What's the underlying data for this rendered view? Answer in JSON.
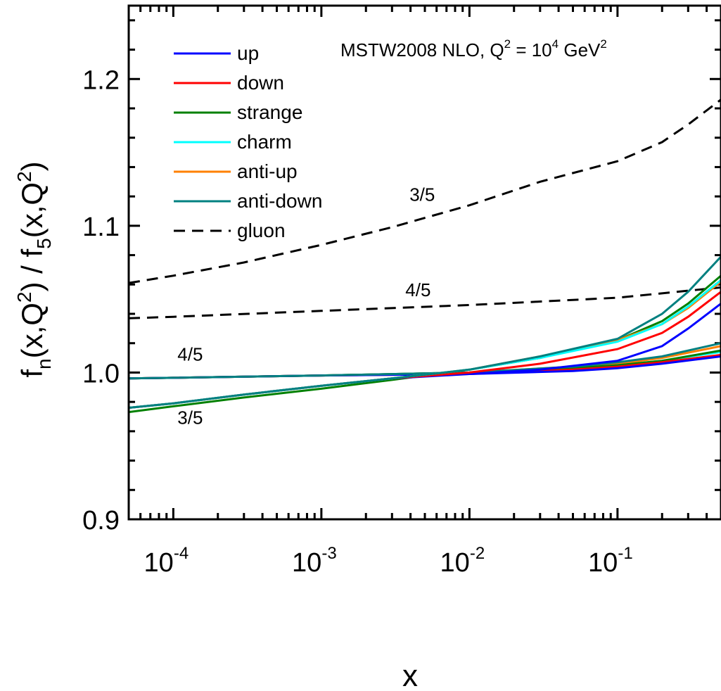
{
  "chart_data": {
    "type": "line",
    "title_parts": {
      "main": "MSTW2008 NLO, Q",
      "sup1": "2",
      "mid": " = 10",
      "sup2": "4",
      "unit": " GeV",
      "sup3": "2"
    },
    "xlabel": "x",
    "ylabel_parts": [
      "f",
      "n",
      "(x,Q",
      "2",
      ") / f",
      "5",
      "(x,Q",
      "2",
      ")"
    ],
    "xscale": "log",
    "xlim": [
      5e-05,
      0.5
    ],
    "ylim": [
      0.9,
      1.25
    ],
    "xticks": [
      {
        "base": "10",
        "exp": "-4",
        "value": 0.0001
      },
      {
        "base": "10",
        "exp": "-3",
        "value": 0.001
      },
      {
        "base": "10",
        "exp": "-2",
        "value": 0.01
      },
      {
        "base": "10",
        "exp": "-1",
        "value": 0.1
      }
    ],
    "yticks": [
      {
        "label": "0.9",
        "value": 0.9
      },
      {
        "label": "1.0",
        "value": 1.0
      },
      {
        "label": "1.1",
        "value": 1.1
      },
      {
        "label": "1.2",
        "value": 1.2
      }
    ],
    "grid": false,
    "legend_position": "top-left",
    "legend": [
      {
        "label": "up",
        "color": "#0000ff",
        "dash": false
      },
      {
        "label": "down",
        "color": "#ff0000",
        "dash": false
      },
      {
        "label": "strange",
        "color": "#008000",
        "dash": false
      },
      {
        "label": "charm",
        "color": "#00ffff",
        "dash": false
      },
      {
        "label": "anti-up",
        "color": "#ff8000",
        "dash": false
      },
      {
        "label": "anti-down",
        "color": "#008080",
        "dash": false
      },
      {
        "label": "gluon",
        "color": "#000000",
        "dash": true
      }
    ],
    "annotations": [
      {
        "text": "3/5",
        "x": 0.0048,
        "y": 1.117
      },
      {
        "text": "4/5",
        "x": 0.0045,
        "y": 1.052
      },
      {
        "text": "4/5",
        "x": 0.00013,
        "y": 1.008
      },
      {
        "text": "3/5",
        "x": 0.00013,
        "y": 0.965
      }
    ],
    "series": [
      {
        "label": "gluon",
        "ratio": "3/5",
        "color": "#000000",
        "dash": true,
        "points": [
          [
            5e-05,
            1.061
          ],
          [
            0.0001,
            1.066
          ],
          [
            0.0003,
            1.075
          ],
          [
            0.001,
            1.087
          ],
          [
            0.003,
            1.099
          ],
          [
            0.01,
            1.114
          ],
          [
            0.03,
            1.13
          ],
          [
            0.1,
            1.144
          ],
          [
            0.2,
            1.157
          ],
          [
            0.3,
            1.169
          ],
          [
            0.5,
            1.186
          ]
        ]
      },
      {
        "label": "gluon",
        "ratio": "4/5",
        "color": "#000000",
        "dash": true,
        "points": [
          [
            5e-05,
            1.037
          ],
          [
            0.0001,
            1.038
          ],
          [
            0.001,
            1.042
          ],
          [
            0.01,
            1.046
          ],
          [
            0.1,
            1.051
          ],
          [
            0.5,
            1.058
          ]
        ]
      },
      {
        "label": "charm",
        "ratio": "4/5",
        "color": "#00ffff",
        "dash": false,
        "points": [
          [
            5e-05,
            0.996
          ],
          [
            0.001,
            0.998
          ],
          [
            0.01,
            1.0
          ],
          [
            0.05,
            1.003
          ],
          [
            0.1,
            1.005
          ],
          [
            0.2,
            1.008
          ],
          [
            0.5,
            1.014
          ]
        ]
      },
      {
        "label": "anti-up",
        "ratio": "4/5",
        "color": "#ff8000",
        "dash": false,
        "points": [
          [
            5e-05,
            0.996
          ],
          [
            0.001,
            0.998
          ],
          [
            0.01,
            1.0
          ],
          [
            0.05,
            1.004
          ],
          [
            0.1,
            1.006
          ],
          [
            0.2,
            1.01
          ],
          [
            0.5,
            1.018
          ]
        ]
      },
      {
        "label": "strange",
        "ratio": "4/5",
        "color": "#008000",
        "dash": false,
        "points": [
          [
            5e-05,
            0.996
          ],
          [
            0.001,
            0.998
          ],
          [
            0.01,
            1.0
          ],
          [
            0.05,
            1.003
          ],
          [
            0.1,
            1.005
          ],
          [
            0.2,
            1.008
          ],
          [
            0.5,
            1.015
          ]
        ]
      },
      {
        "label": "down",
        "ratio": "4/5",
        "color": "#ff0000",
        "dash": false,
        "points": [
          [
            5e-05,
            0.996
          ],
          [
            0.001,
            0.998
          ],
          [
            0.01,
            0.999
          ],
          [
            0.05,
            1.002
          ],
          [
            0.1,
            1.004
          ],
          [
            0.2,
            1.007
          ],
          [
            0.5,
            1.012
          ]
        ]
      },
      {
        "label": "up",
        "ratio": "4/5",
        "color": "#0000ff",
        "dash": false,
        "points": [
          [
            5e-05,
            0.996
          ],
          [
            0.001,
            0.998
          ],
          [
            0.01,
            0.999
          ],
          [
            0.05,
            1.001
          ],
          [
            0.1,
            1.003
          ],
          [
            0.2,
            1.006
          ],
          [
            0.5,
            1.011
          ]
        ]
      },
      {
        "label": "anti-down",
        "ratio": "4/5",
        "color": "#008080",
        "dash": false,
        "points": [
          [
            5e-05,
            0.996
          ],
          [
            0.001,
            0.998
          ],
          [
            0.01,
            1.0
          ],
          [
            0.05,
            1.004
          ],
          [
            0.1,
            1.007
          ],
          [
            0.2,
            1.011
          ],
          [
            0.5,
            1.02
          ]
        ]
      },
      {
        "label": "strange",
        "ratio": "3/5",
        "color": "#008000",
        "dash": false,
        "points": [
          [
            5e-05,
            0.973
          ],
          [
            0.0001,
            0.977
          ],
          [
            0.0003,
            0.983
          ],
          [
            0.001,
            0.989
          ],
          [
            0.003,
            0.995
          ],
          [
            0.01,
            1.002
          ],
          [
            0.03,
            1.01
          ],
          [
            0.1,
            1.022
          ],
          [
            0.2,
            1.035
          ],
          [
            0.3,
            1.047
          ],
          [
            0.5,
            1.066
          ]
        ]
      },
      {
        "label": "up",
        "ratio": "3/5",
        "color": "#0000ff",
        "dash": false,
        "points": [
          [
            5e-05,
            0.976
          ],
          [
            0.0001,
            0.979
          ],
          [
            0.0003,
            0.985
          ],
          [
            0.001,
            0.991
          ],
          [
            0.003,
            0.996
          ],
          [
            0.01,
            0.999
          ],
          [
            0.03,
            1.002
          ],
          [
            0.1,
            1.008
          ],
          [
            0.2,
            1.018
          ],
          [
            0.3,
            1.03
          ],
          [
            0.5,
            1.047
          ]
        ]
      },
      {
        "label": "down",
        "ratio": "3/5",
        "color": "#ff0000",
        "dash": false,
        "points": [
          [
            5e-05,
            0.976
          ],
          [
            0.0001,
            0.979
          ],
          [
            0.0003,
            0.985
          ],
          [
            0.001,
            0.991
          ],
          [
            0.003,
            0.996
          ],
          [
            0.01,
            1.0
          ],
          [
            0.03,
            1.006
          ],
          [
            0.1,
            1.016
          ],
          [
            0.2,
            1.027
          ],
          [
            0.3,
            1.038
          ],
          [
            0.5,
            1.055
          ]
        ]
      },
      {
        "label": "anti-up",
        "ratio": "3/5",
        "color": "#ff8000",
        "dash": false,
        "points": [
          [
            5e-05,
            0.976
          ],
          [
            0.0001,
            0.979
          ],
          [
            0.0003,
            0.985
          ],
          [
            0.001,
            0.991
          ],
          [
            0.003,
            0.996
          ],
          [
            0.01,
            1.002
          ],
          [
            0.03,
            1.011
          ],
          [
            0.1,
            1.022
          ],
          [
            0.2,
            1.033
          ],
          [
            0.3,
            1.044
          ],
          [
            0.5,
            1.062
          ]
        ]
      },
      {
        "label": "charm",
        "ratio": "3/5",
        "color": "#00ffff",
        "dash": false,
        "points": [
          [
            5e-05,
            0.976
          ],
          [
            0.0001,
            0.979
          ],
          [
            0.0003,
            0.985
          ],
          [
            0.001,
            0.991
          ],
          [
            0.003,
            0.996
          ],
          [
            0.01,
            1.002
          ],
          [
            0.03,
            1.01
          ],
          [
            0.1,
            1.021
          ],
          [
            0.2,
            1.033
          ],
          [
            0.3,
            1.045
          ],
          [
            0.5,
            1.063
          ]
        ]
      },
      {
        "label": "anti-down",
        "ratio": "3/5",
        "color": "#008080",
        "dash": false,
        "points": [
          [
            5e-05,
            0.976
          ],
          [
            0.0001,
            0.979
          ],
          [
            0.0003,
            0.985
          ],
          [
            0.001,
            0.991
          ],
          [
            0.003,
            0.996
          ],
          [
            0.01,
            1.002
          ],
          [
            0.03,
            1.011
          ],
          [
            0.1,
            1.023
          ],
          [
            0.2,
            1.04
          ],
          [
            0.3,
            1.055
          ],
          [
            0.5,
            1.079
          ]
        ]
      }
    ]
  }
}
